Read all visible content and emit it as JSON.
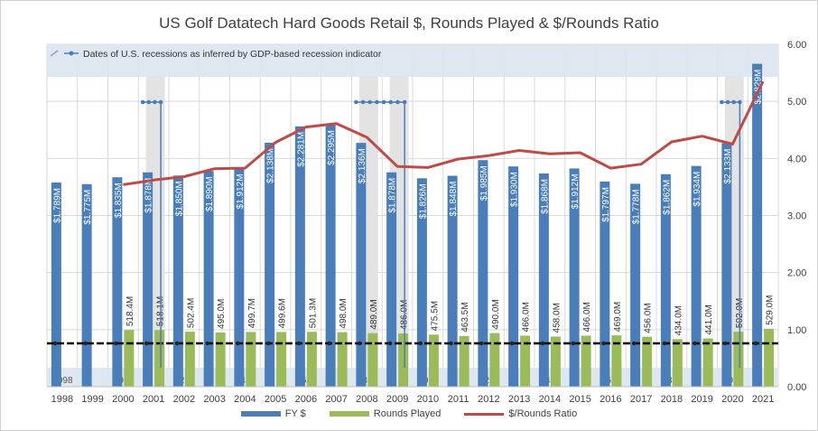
{
  "chart_data": {
    "type": "bar",
    "title": "US Golf Datatech Hard Goods Retail $, Rounds Played & $/Rounds Ratio",
    "categories": [
      "1998",
      "1999",
      "2000",
      "2001",
      "2002",
      "2003",
      "2004",
      "2005",
      "2006",
      "2007",
      "2008",
      "2009",
      "2010",
      "2011",
      "2012",
      "2013",
      "2014",
      "2015",
      "2016",
      "2017",
      "2018",
      "2019",
      "2020",
      "2021"
    ],
    "series": [
      {
        "name": "FY $",
        "kind": "bar",
        "color": "#4a7ebb",
        "values": [
          1.789,
          1.775,
          1.835,
          1.878,
          1.85,
          1.89,
          1.912,
          2.138,
          2.281,
          2.295,
          2.136,
          1.878,
          1.826,
          1.848,
          1.985,
          1.93,
          1.868,
          1.912,
          1.797,
          1.778,
          1.862,
          1.934,
          2.133,
          2.829
        ],
        "labels": [
          "$1.789M",
          "$1.775M",
          "$1.835M",
          "$1.878M",
          "$1.850M",
          "$1.890M",
          "$1.912M",
          "$2.138M",
          "$2.281M",
          "$2.295M",
          "$2.136M",
          "$1.878M",
          "$1.826M",
          "$1.848M",
          "$1.985M",
          "$1.930M",
          "$1.868M",
          "$1.912M",
          "$1.797M",
          "$1.778M",
          "$1.862M",
          "$1.934M",
          "$2.133M",
          "$2.829M"
        ]
      },
      {
        "name": "Rounds Played",
        "kind": "bar",
        "color": "#9bbb59",
        "values": [
          null,
          null,
          518.4,
          518.1,
          502.4,
          495.0,
          499.7,
          499.6,
          501.3,
          498.0,
          489.0,
          486.0,
          475.5,
          463.5,
          490.0,
          466.0,
          458.0,
          466.0,
          469.0,
          456.0,
          434.0,
          441.0,
          502.0,
          529.0
        ],
        "labels": [
          "",
          "",
          "518.4M",
          "518.1M",
          "502.4M",
          "495.0M",
          "499.7M",
          "499.6M",
          "501.3M",
          "498.0M",
          "489.0M",
          "486.0M",
          "475.5M",
          "463.5M",
          "490.0M",
          "466.0M",
          "458.0M",
          "466.0M",
          "469.0M",
          "456.0M",
          "434.0M",
          "441.0M",
          "502.0M",
          "529.0M"
        ]
      },
      {
        "name": "$/Rounds Ratio",
        "kind": "line",
        "color": "#be4b48",
        "values": [
          null,
          null,
          3.54,
          3.62,
          3.68,
          3.82,
          3.83,
          4.28,
          4.55,
          4.61,
          4.37,
          3.86,
          3.84,
          3.99,
          4.05,
          4.14,
          4.08,
          4.1,
          3.83,
          3.9,
          4.29,
          4.39,
          4.25,
          5.35
        ]
      }
    ],
    "ylim": [
      0,
      6
    ],
    "y_ticks": [
      "0.00",
      "1.00",
      "2.00",
      "3.00",
      "4.00",
      "5.00",
      "6.00"
    ],
    "grid": true,
    "legend_position": "bottom"
  },
  "overlay": {
    "label": "Dates of U.S. recessions as inferred by GDP-based recession indicator",
    "shaded_years": [
      "2001",
      "2008",
      "2009",
      "2020"
    ],
    "partial_tick_labels": [
      "998",
      "0",
      "2",
      "4",
      "6",
      "8",
      "0",
      "2",
      "4",
      "6",
      "8",
      "0"
    ]
  },
  "colors": {
    "grid": "#d9d9d9",
    "shade": "#e3e3e3",
    "overlay_band": "#dce6f0",
    "recession_marker": "#4a7ebb",
    "baseline": "#000000"
  }
}
